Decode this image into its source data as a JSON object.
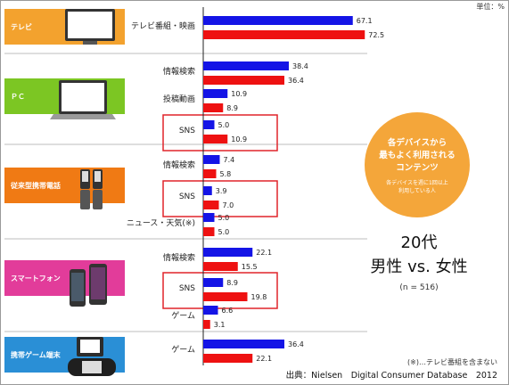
{
  "chart_data": {
    "type": "bar",
    "orientation": "horizontal",
    "unit_label": "単位：%",
    "series": [
      {
        "key": "male",
        "color": "#1414e6"
      },
      {
        "key": "female",
        "color": "#ee1111"
      }
    ],
    "groups": [
      {
        "device": "テレビ",
        "color": "#f3a22e",
        "categories": [
          {
            "label": "テレビ番組・映画",
            "male": 67.1,
            "female": 72.5,
            "highlight": false
          }
        ]
      },
      {
        "device": "ＰＣ",
        "color": "#7cc623",
        "categories": [
          {
            "label": "情報検索",
            "male": 38.4,
            "female": 36.4,
            "highlight": false
          },
          {
            "label": "投稿動画",
            "male": 10.9,
            "female": 8.9,
            "highlight": false
          },
          {
            "label": "SNS",
            "male": 5.0,
            "female": 10.9,
            "highlight": true
          }
        ]
      },
      {
        "device": "従来型携帯電話",
        "color": "#f07a14",
        "categories": [
          {
            "label": "情報検索",
            "male": 7.4,
            "female": 5.8,
            "highlight": false
          },
          {
            "label": "SNS",
            "male": 3.9,
            "female": 7.0,
            "highlight": true
          },
          {
            "label": "ニュース・天気(※)",
            "male": 5.0,
            "female": 5.0,
            "highlight": false
          }
        ]
      },
      {
        "device": "スマートフォン",
        "color": "#e23c9a",
        "categories": [
          {
            "label": "情報検索",
            "male": 22.1,
            "female": 15.5,
            "highlight": false
          },
          {
            "label": "SNS",
            "male": 8.9,
            "female": 19.8,
            "highlight": true
          },
          {
            "label": "ゲーム",
            "male": 6.6,
            "female": 3.1,
            "highlight": false
          }
        ]
      },
      {
        "device": "携帯ゲーム端末",
        "color": "#2a8fd6",
        "categories": [
          {
            "label": "ゲーム",
            "male": 36.4,
            "female": 22.1,
            "highlight": false
          }
        ]
      }
    ],
    "callout": {
      "lines": [
        "各デバイスから",
        "最もよく利用される",
        "コンテンツ"
      ],
      "sub_lines": [
        "各デバイスを週に1回以上",
        "利用している人"
      ],
      "color": "#f4a63a"
    },
    "title_lines": [
      "20代",
      "男性 vs. 女性"
    ],
    "sample_size": "(n = 516)",
    "note": "(※)…テレビ番組を含まない",
    "source": "出典：Nielsen　Digital Consumer Database　2012"
  }
}
